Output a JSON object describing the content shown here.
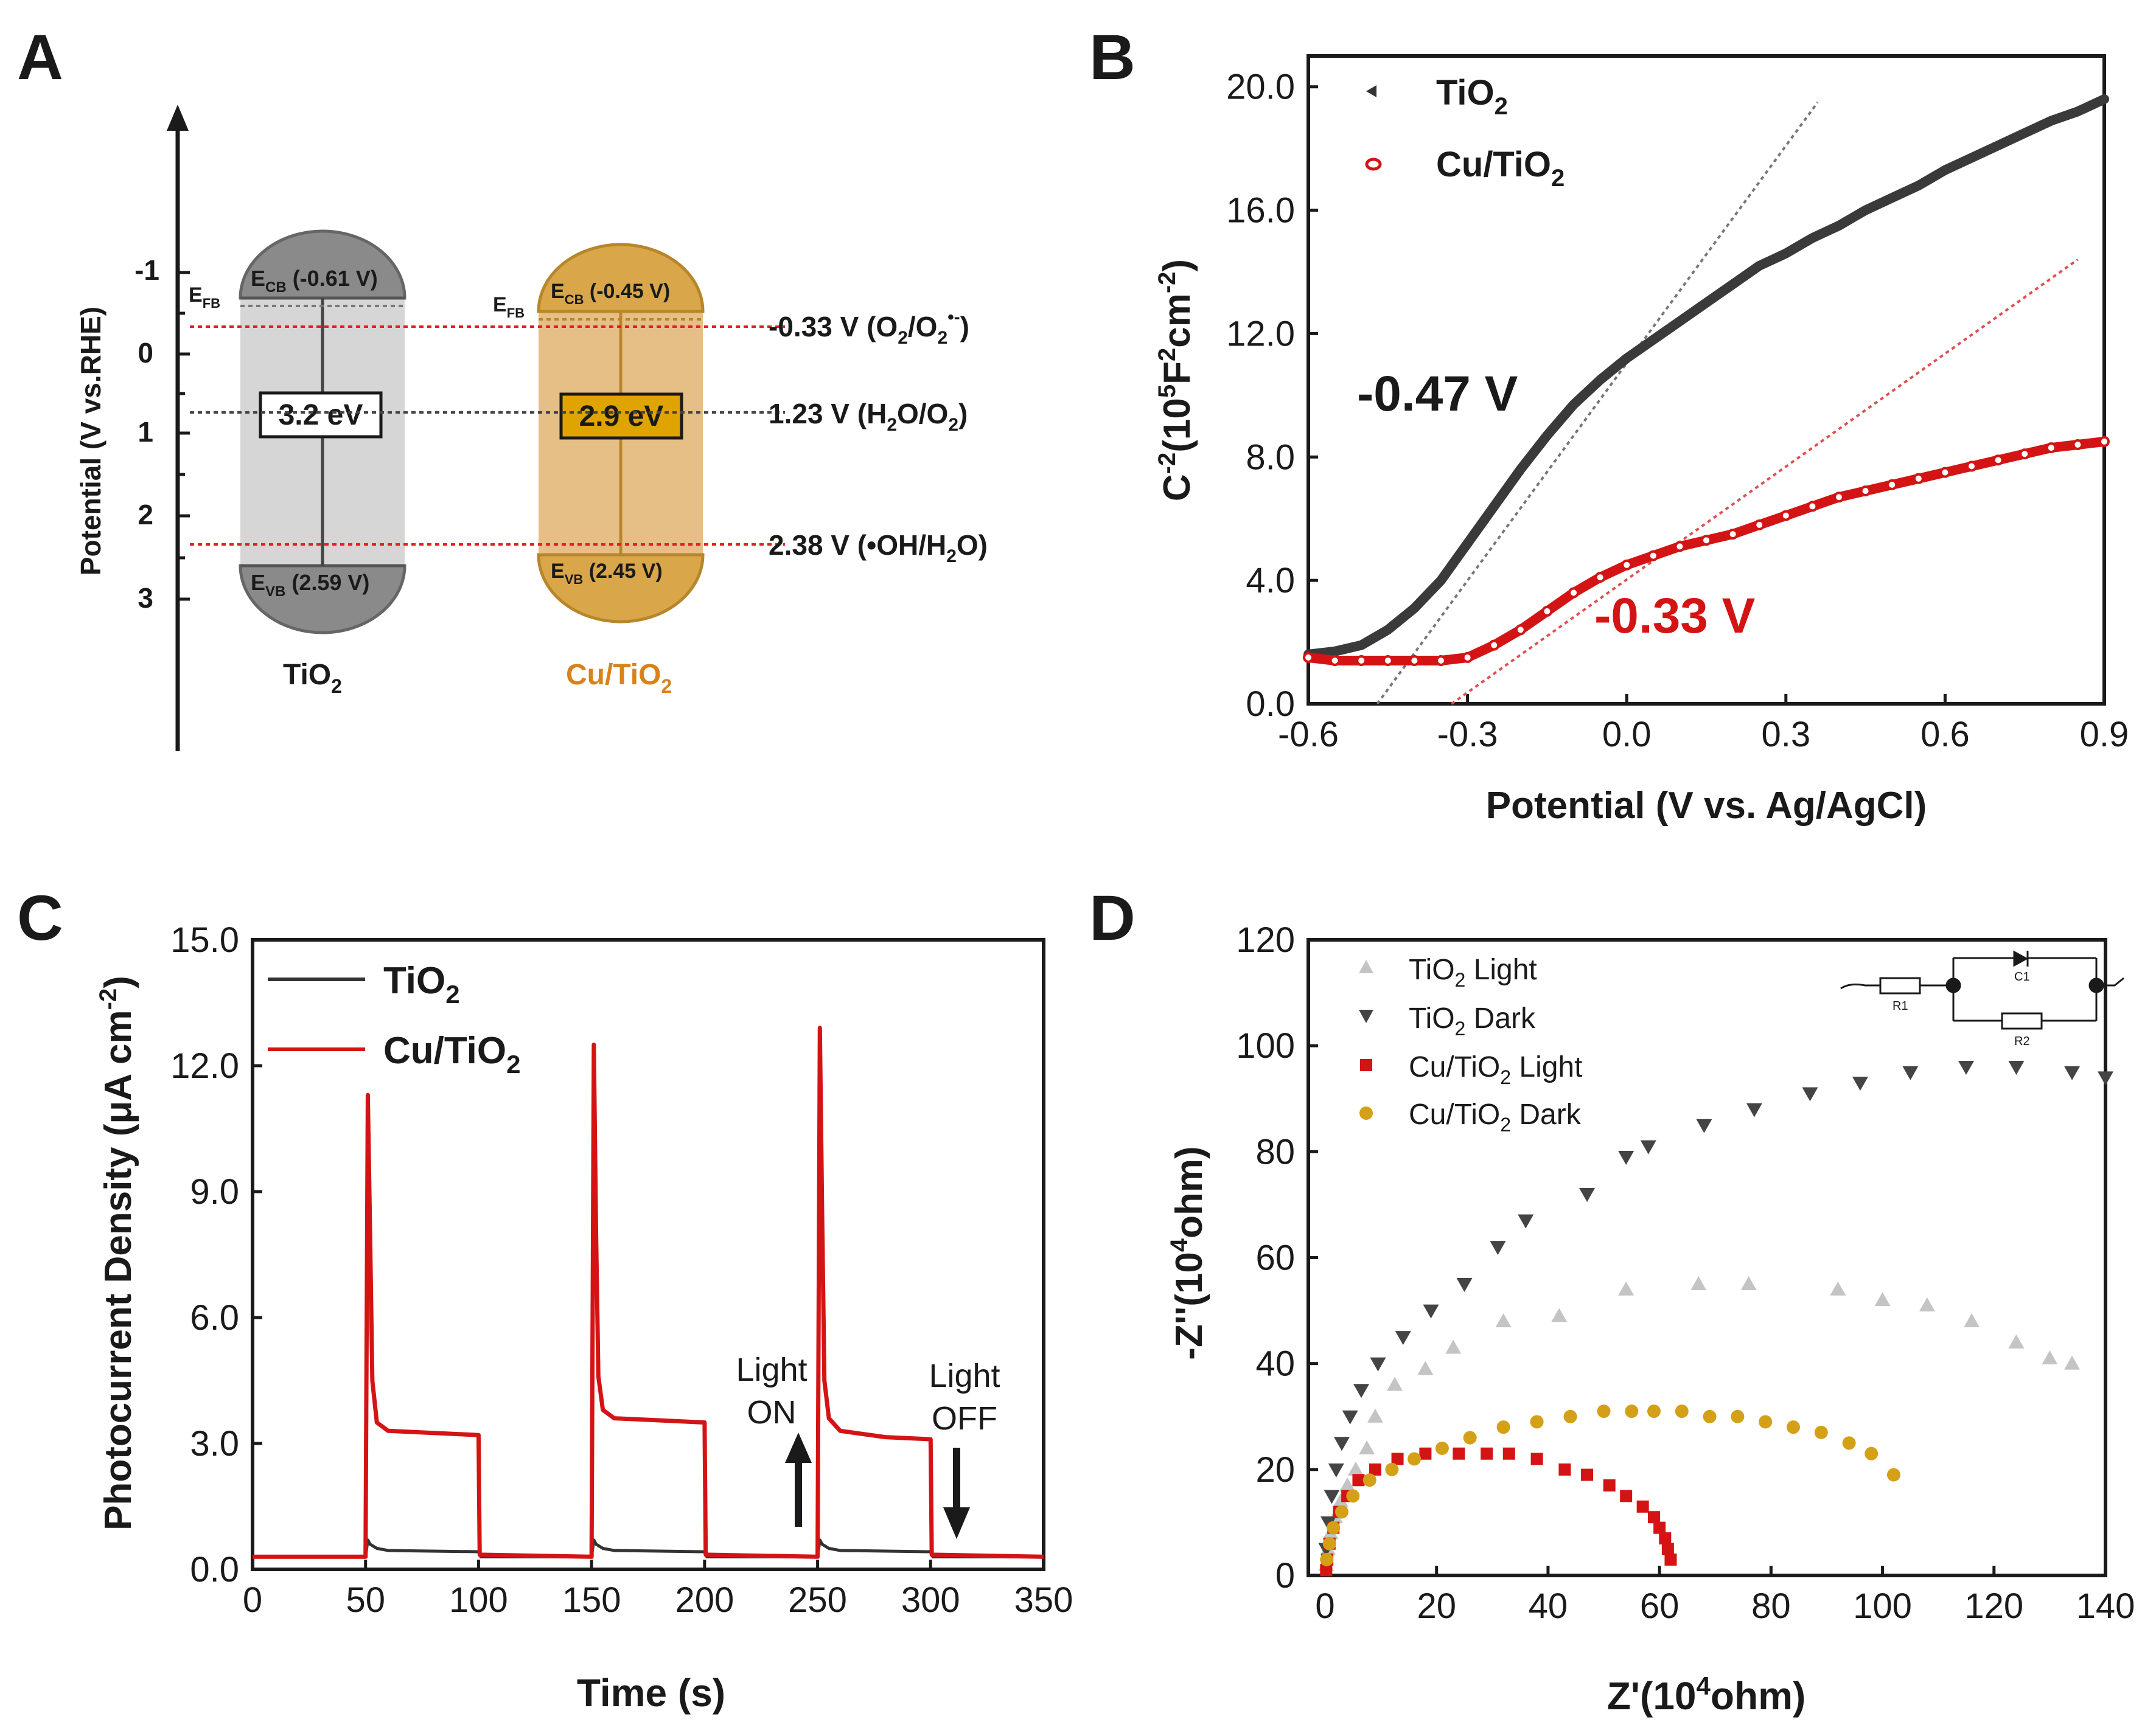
{
  "colors": {
    "black": "#1a1a1a",
    "dark_gray": "#444444",
    "light_gray": "#c4c4c4",
    "red": "#d41414",
    "gold": "#d4a017",
    "orange_text": "#d8821a",
    "tio2_fill": "#d6d6d6",
    "cu_fill": "#e5bf86"
  },
  "panel_a": {
    "letter": "A",
    "axis": {
      "label": "Potential (V vs.RHE)",
      "ticks": [
        "-1",
        "0",
        "1",
        "2",
        "3"
      ]
    },
    "tio2": {
      "name": "TiO",
      "sub": "2",
      "ecb_text": "E",
      "ecb_sub": "CB",
      "ecb_value": " (-0.61 V)",
      "evb_text": "E",
      "evb_sub": "VB",
      "evb_value": " (2.59 V)",
      "gap": "3.2 eV",
      "efb": "E",
      "efb_sub": "FB"
    },
    "cu": {
      "name": "Cu/TiO",
      "sub": "2",
      "ecb_text": "E",
      "ecb_sub": "CB",
      "ecb_value": " (-0.45 V)",
      "evb_text": "E",
      "evb_sub": "VB",
      "evb_value": " (2.45 V)",
      "gap": "2.9 eV",
      "efb": "E",
      "efb_sub": "FB"
    },
    "levels": [
      {
        "main": "-0.33 V  (O",
        "sub1": "2",
        "mid": "/O",
        "sub2": "2",
        "sup": "•-",
        "end": ")"
      },
      {
        "main": "1.23 V (H",
        "sub1": "2",
        "mid": "O/O",
        "sub2": "2",
        "sup": "",
        "end": ")"
      },
      {
        "main": "2.38 V (•OH/H",
        "sub1": "2",
        "mid": "O)",
        "sub2": "",
        "sup": "",
        "end": ""
      }
    ]
  },
  "chart_data": [
    {
      "panel": "B",
      "type": "scatter",
      "xlabel": "Potential (V vs. Ag/AgCl)",
      "ylabel": "C-2(105F2cm-2)",
      "xlim": [
        -0.6,
        0.9
      ],
      "ylim": [
        0,
        21
      ],
      "xticks": [
        "-0.6",
        "-0.3",
        "0.0",
        "0.3",
        "0.6",
        "0.9"
      ],
      "yticks": [
        "0.0",
        "4.0",
        "8.0",
        "12.0",
        "16.0",
        "20.0"
      ],
      "series": [
        {
          "name": "TiO2",
          "x": [
            -0.6,
            -0.55,
            -0.5,
            -0.45,
            -0.4,
            -0.35,
            -0.3,
            -0.25,
            -0.2,
            -0.15,
            -0.1,
            -0.05,
            0.0,
            0.05,
            0.1,
            0.15,
            0.2,
            0.25,
            0.3,
            0.35,
            0.4,
            0.45,
            0.5,
            0.55,
            0.6,
            0.65,
            0.7,
            0.75,
            0.8,
            0.85,
            0.9
          ],
          "y": [
            1.6,
            1.7,
            1.9,
            2.4,
            3.1,
            4.0,
            5.2,
            6.4,
            7.6,
            8.7,
            9.7,
            10.5,
            11.2,
            11.8,
            12.4,
            13.0,
            13.6,
            14.2,
            14.6,
            15.1,
            15.5,
            16.0,
            16.4,
            16.8,
            17.3,
            17.7,
            18.1,
            18.5,
            18.9,
            19.2,
            19.6
          ]
        },
        {
          "name": "Cu/TiO2",
          "x": [
            -0.6,
            -0.55,
            -0.5,
            -0.45,
            -0.4,
            -0.35,
            -0.3,
            -0.25,
            -0.2,
            -0.15,
            -0.1,
            -0.05,
            0.0,
            0.05,
            0.1,
            0.15,
            0.2,
            0.25,
            0.3,
            0.35,
            0.4,
            0.45,
            0.5,
            0.55,
            0.6,
            0.65,
            0.7,
            0.75,
            0.8,
            0.85,
            0.9
          ],
          "y": [
            1.5,
            1.4,
            1.4,
            1.4,
            1.4,
            1.4,
            1.5,
            1.9,
            2.4,
            3.0,
            3.6,
            4.1,
            4.5,
            4.8,
            5.1,
            5.3,
            5.5,
            5.8,
            6.1,
            6.4,
            6.7,
            6.9,
            7.1,
            7.3,
            7.5,
            7.7,
            7.9,
            8.1,
            8.3,
            8.4,
            8.5
          ]
        }
      ],
      "fit_lines": [
        {
          "name": "TiO2",
          "x": [
            -0.47,
            0.36
          ],
          "y": [
            0,
            19.5
          ]
        },
        {
          "name": "Cu/TiO2",
          "x": [
            -0.33,
            0.85
          ],
          "y": [
            0,
            14.4
          ]
        }
      ],
      "annotations": [
        {
          "text": "-0.47 V",
          "color": "black"
        },
        {
          "text": "-0.33 V",
          "color": "red"
        }
      ],
      "legend_position": "top-left"
    },
    {
      "panel": "C",
      "type": "line",
      "xlabel": "Time (s)",
      "ylabel": "Photocurrent Density (μA cm-2)",
      "xlim": [
        0,
        350
      ],
      "ylim": [
        0,
        15
      ],
      "xticks": [
        "0",
        "50",
        "100",
        "150",
        "200",
        "250",
        "300",
        "350"
      ],
      "yticks": [
        "0.0",
        "3.0",
        "6.0",
        "9.0",
        "12.0",
        "15.0"
      ],
      "series": [
        {
          "name": "TiO2",
          "x": [
            0,
            50,
            51,
            52,
            55,
            60,
            100,
            101,
            150,
            151,
            152,
            155,
            160,
            200,
            201,
            250,
            251,
            252,
            255,
            260,
            300,
            301,
            350
          ],
          "y": [
            0.3,
            0.3,
            0.7,
            0.6,
            0.5,
            0.45,
            0.42,
            0.3,
            0.3,
            0.7,
            0.6,
            0.5,
            0.45,
            0.42,
            0.3,
            0.3,
            0.7,
            0.6,
            0.5,
            0.45,
            0.42,
            0.3,
            0.3
          ]
        },
        {
          "name": "Cu/TiO2",
          "x": [
            0,
            50,
            51,
            52,
            53,
            55,
            60,
            80,
            100,
            100.5,
            150,
            151,
            152,
            153,
            155,
            160,
            180,
            200,
            200.5,
            250,
            251,
            252,
            253,
            255,
            260,
            280,
            300,
            300.5,
            350
          ],
          "y": [
            0.3,
            0.3,
            11.3,
            8.0,
            4.5,
            3.5,
            3.3,
            3.25,
            3.2,
            0.35,
            0.3,
            12.5,
            8.0,
            4.6,
            3.8,
            3.6,
            3.55,
            3.5,
            0.35,
            0.3,
            12.9,
            8.5,
            4.5,
            3.6,
            3.3,
            3.15,
            3.1,
            0.35,
            0.3
          ]
        }
      ],
      "annotations": [
        {
          "text_line1": "Light",
          "text_line2": "ON",
          "x": 240,
          "direction": "up"
        },
        {
          "text_line1": "Light",
          "text_line2": "OFF",
          "x": 310,
          "direction": "down"
        }
      ],
      "legend_position": "top-left"
    },
    {
      "panel": "D",
      "type": "scatter",
      "xlabel": "Z'(104ohm)",
      "ylabel": "-Z''(104ohm)",
      "xlim": [
        -3,
        140
      ],
      "ylim": [
        0,
        120
      ],
      "xticks": [
        "0",
        "20",
        "40",
        "60",
        "80",
        "100",
        "120",
        "140"
      ],
      "yticks": [
        "0",
        "20",
        "40",
        "60",
        "80",
        "100",
        "120"
      ],
      "series": [
        {
          "name": "TiO2 Light",
          "x": [
            0.2,
            0.5,
            1.0,
            1.8,
            2.8,
            4.0,
            5.5,
            7.5,
            9.0,
            12.5,
            18,
            23,
            32,
            42,
            54,
            67,
            76,
            92,
            100,
            108,
            116,
            124,
            130,
            134
          ],
          "y": [
            2,
            5,
            8,
            11,
            14,
            17,
            20,
            24,
            30,
            36,
            39,
            43,
            48,
            49,
            54,
            55,
            55,
            54,
            52,
            51,
            48,
            44,
            41,
            40
          ]
        },
        {
          "name": "TiO2 Dark",
          "x": [
            0.2,
            0.6,
            1.2,
            2.0,
            3.0,
            4.5,
            6.5,
            9.5,
            14,
            19,
            25,
            31,
            36,
            47,
            54,
            58,
            68,
            77,
            87,
            96,
            105,
            115,
            124,
            134,
            140
          ],
          "y": [
            5,
            10,
            15,
            20,
            25,
            30,
            35,
            40,
            45,
            50,
            55,
            62,
            67,
            72,
            79,
            81,
            85,
            88,
            91,
            93,
            95,
            96,
            96,
            95,
            94
          ]
        },
        {
          "name": "Cu/TiO2 Light",
          "x": [
            0.2,
            0.4,
            0.8,
            1.5,
            2.5,
            4,
            6,
            9,
            13,
            18,
            24,
            29,
            33,
            38,
            43,
            47,
            51,
            54,
            57,
            59,
            60,
            61,
            61.5,
            62
          ],
          "y": [
            1,
            3,
            6,
            9,
            12,
            15,
            18,
            20,
            22,
            23,
            23,
            23,
            23,
            22,
            20,
            19,
            17,
            15,
            13,
            11,
            9,
            7,
            5,
            3
          ]
        },
        {
          "name": "Cu/TiO2 Dark",
          "x": [
            0.3,
            0.8,
            1.5,
            3,
            5,
            8,
            12,
            16,
            21,
            26,
            32,
            38,
            44,
            50,
            55,
            59,
            64,
            69,
            74,
            79,
            84,
            89,
            94,
            98,
            102
          ],
          "y": [
            3,
            6,
            9,
            12,
            15,
            18,
            20,
            22,
            24,
            26,
            28,
            29,
            30,
            31,
            31,
            31,
            31,
            30,
            30,
            29,
            28,
            27,
            25,
            23,
            19
          ]
        }
      ],
      "legend_position": "top-left",
      "inset": {
        "labels": [
          "C1",
          "R1",
          "R2"
        ]
      }
    }
  ],
  "legends": {
    "b": [
      {
        "main": "TiO",
        "sub": "2",
        "rest": ""
      },
      {
        "main": "Cu/TiO",
        "sub": "2",
        "rest": ""
      }
    ],
    "c": [
      {
        "main": "TiO",
        "sub": "2",
        "rest": ""
      },
      {
        "main": "Cu/TiO",
        "sub": "2",
        "rest": ""
      }
    ],
    "d": [
      {
        "main": "TiO",
        "sub": "2",
        "rest": " Light"
      },
      {
        "main": "TiO",
        "sub": "2",
        "rest": " Dark"
      },
      {
        "main": "Cu/TiO",
        "sub": "2",
        "rest": " Light"
      },
      {
        "main": "Cu/TiO",
        "sub": "2",
        "rest": " Dark"
      }
    ]
  },
  "letters": {
    "b": "B",
    "c": "C",
    "d": "D"
  }
}
